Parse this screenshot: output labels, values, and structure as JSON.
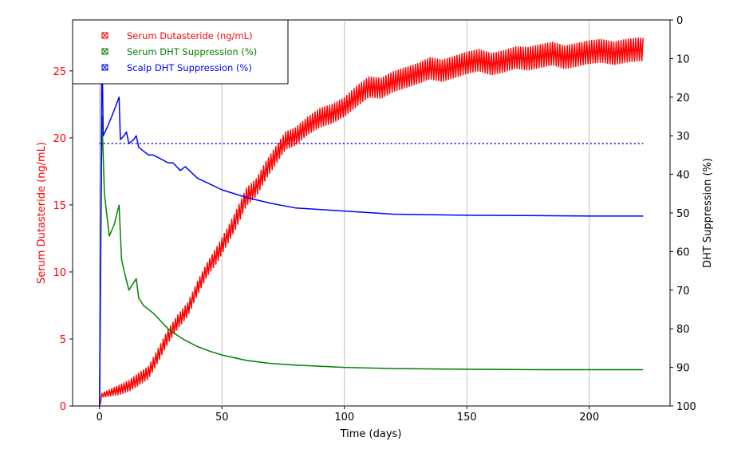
{
  "chart_data": {
    "type": "line",
    "title": "",
    "xlabel": "Time (days)",
    "ylabel_left": "Serum Dutasteride (ng/mL)",
    "ylabel_right": "DHT Suppression (%)",
    "xlim": [
      -11,
      233
    ],
    "ylim_left": [
      0,
      28.8
    ],
    "ylim_right": [
      100,
      0
    ],
    "right_axis_inverted": true,
    "grid": "x-only",
    "legend_placement": "top-left",
    "x_ticks": [
      "0",
      "50",
      "100",
      "150",
      "200"
    ],
    "y_left_ticks": [
      "0",
      "5",
      "10",
      "15",
      "20",
      "25"
    ],
    "y_right_ticks": [
      "0",
      "10",
      "20",
      "30",
      "40",
      "50",
      "60",
      "70",
      "80",
      "90",
      "100"
    ],
    "series": [
      {
        "name": "Serum Dutasteride (ng/mL)",
        "axis": "left",
        "color": "#ff0000",
        "x": [
          0,
          1,
          8,
          12,
          16,
          20,
          24,
          28,
          32,
          36,
          40,
          44,
          48,
          52,
          56,
          60,
          64,
          68,
          72,
          76,
          80,
          85,
          90,
          95,
          100,
          105,
          110,
          115,
          120,
          125,
          130,
          135,
          140,
          145,
          150,
          155,
          160,
          165,
          170,
          175,
          180,
          185,
          190,
          195,
          200,
          205,
          210,
          215,
          220,
          222
        ],
        "values": [
          0,
          0.8,
          1.2,
          1.5,
          2.0,
          2.5,
          3.8,
          5.2,
          6.3,
          7.2,
          8.8,
          10.2,
          11.3,
          12.6,
          14.0,
          15.6,
          16.3,
          17.6,
          18.7,
          19.8,
          20.1,
          20.9,
          21.5,
          21.8,
          22.3,
          23.1,
          23.8,
          23.7,
          24.2,
          24.5,
          24.8,
          25.2,
          25.0,
          25.3,
          25.6,
          25.8,
          25.5,
          25.7,
          26.0,
          25.9,
          26.1,
          26.3,
          26.0,
          26.2,
          26.4,
          26.5,
          26.3,
          26.5,
          26.6,
          26.6
        ],
        "spread": [
          0,
          0.3,
          0.7,
          0.8,
          0.9,
          0.9,
          1.0,
          1.0,
          1.0,
          1.0,
          1.0,
          1.0,
          1.2,
          1.2,
          1.3,
          1.3,
          1.3,
          1.3,
          1.3,
          1.3,
          1.3,
          1.3,
          1.4,
          1.4,
          1.4,
          1.5,
          1.5,
          1.5,
          1.5,
          1.5,
          1.5,
          1.6,
          1.6,
          1.6,
          1.6,
          1.6,
          1.6,
          1.6,
          1.6,
          1.7,
          1.7,
          1.7,
          1.7,
          1.7,
          1.7,
          1.7,
          1.7,
          1.7,
          1.7,
          1.7
        ]
      },
      {
        "name": "Serum DHT Suppression (%)",
        "axis": "right",
        "color": "#008000",
        "x": [
          0,
          1,
          2,
          4,
          6,
          8,
          9,
          10,
          12,
          14,
          15,
          16,
          18,
          20,
          22,
          25,
          28,
          30,
          35,
          40,
          45,
          50,
          60,
          70,
          80,
          100,
          120,
          150,
          180,
          200,
          222
        ],
        "values": [
          100,
          25,
          45,
          56,
          53,
          48,
          62,
          65,
          70,
          68,
          67,
          72,
          74,
          75,
          76,
          78,
          80,
          81,
          83,
          84.6,
          85.8,
          86.8,
          88.2,
          89.0,
          89.4,
          90.0,
          90.3,
          90.5,
          90.6,
          90.6,
          90.6
        ]
      },
      {
        "name": "Scalp DHT Suppression (%)",
        "axis": "right",
        "color": "#0000ff",
        "x": [
          0,
          1,
          1.5,
          3,
          5,
          8,
          8.5,
          10,
          11,
          12,
          14,
          15,
          16,
          18,
          20,
          22,
          25,
          28,
          30,
          33,
          35,
          40,
          45,
          50,
          60,
          70,
          80,
          100,
          120,
          150,
          180,
          200,
          222
        ],
        "values": [
          100,
          5,
          30,
          28,
          25,
          20,
          31,
          30,
          29,
          32,
          31,
          30,
          33,
          34,
          35,
          35,
          36,
          37,
          37,
          39,
          38,
          41,
          42.5,
          44,
          46,
          47.5,
          48.7,
          49.5,
          50.3,
          50.6,
          50.7,
          50.8,
          50.8
        ]
      }
    ],
    "reference_line": {
      "axis": "right",
      "value": 32,
      "x_start": 0,
      "x_end": 222,
      "color": "#0000ff",
      "style": "dotted"
    }
  }
}
